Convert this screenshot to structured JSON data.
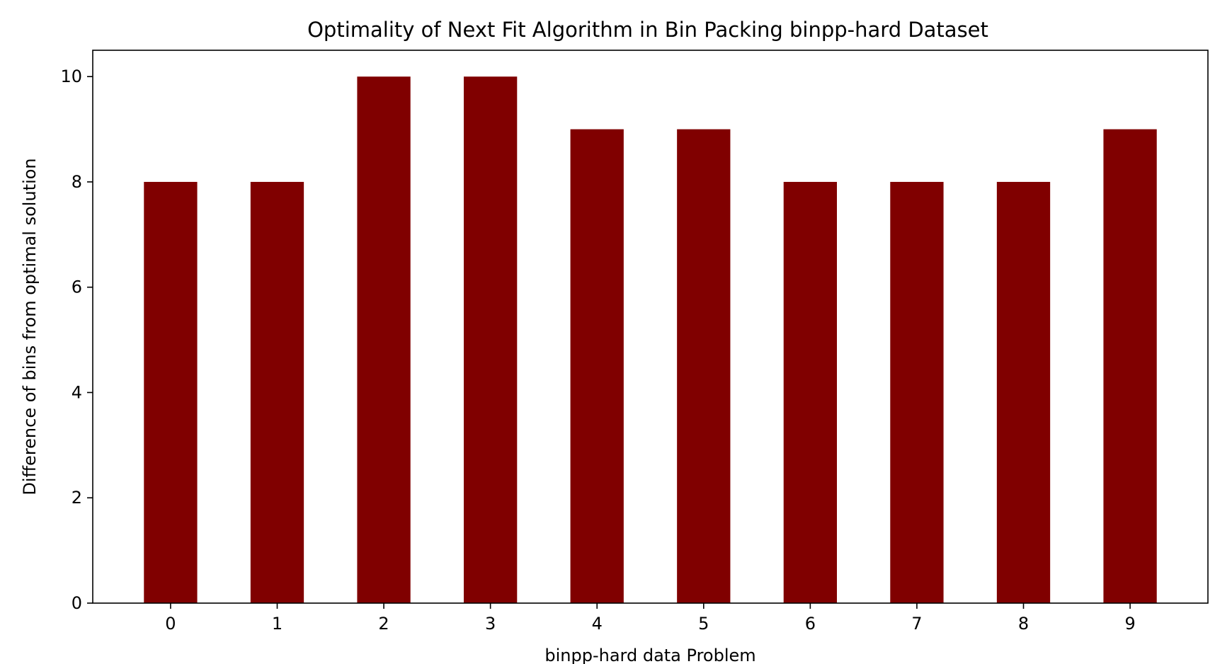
{
  "chart_data": {
    "type": "bar",
    "title": "Optimality of Next Fit Algorithm in Bin Packing binpp-hard Dataset",
    "xlabel": "binpp-hard data Problem",
    "ylabel": "Difference of bins from optimal solution",
    "categories": [
      "0",
      "1",
      "2",
      "3",
      "4",
      "5",
      "6",
      "7",
      "8",
      "9"
    ],
    "values": [
      8,
      8,
      10,
      10,
      9,
      9,
      8,
      8,
      8,
      9
    ],
    "ylim": [
      0,
      10.5
    ],
    "yticks": [
      0,
      2,
      4,
      6,
      8,
      10
    ],
    "grid": false,
    "legend": "none",
    "bar_color": "#800000"
  }
}
